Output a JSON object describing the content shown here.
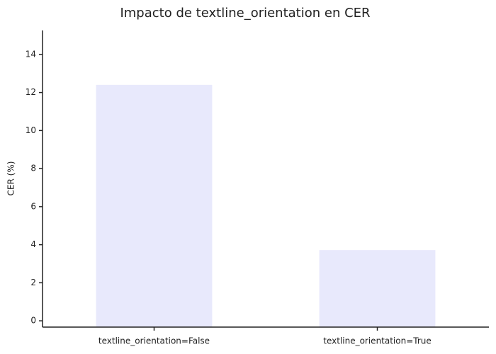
{
  "chart_data": {
    "type": "bar",
    "title": "Impacto de textline_orientation en CER",
    "y_label": "CER (%)",
    "categories": [
      "textline_orientation=False",
      "textline_orientation=True"
    ],
    "values": [
      12.4,
      3.72
    ],
    "color": "#e8e9fc",
    "ylim": [
      -0.33,
      15.26
    ],
    "yticks": [
      0,
      2,
      4,
      6,
      8,
      10,
      12,
      14
    ],
    "grid": false
  }
}
